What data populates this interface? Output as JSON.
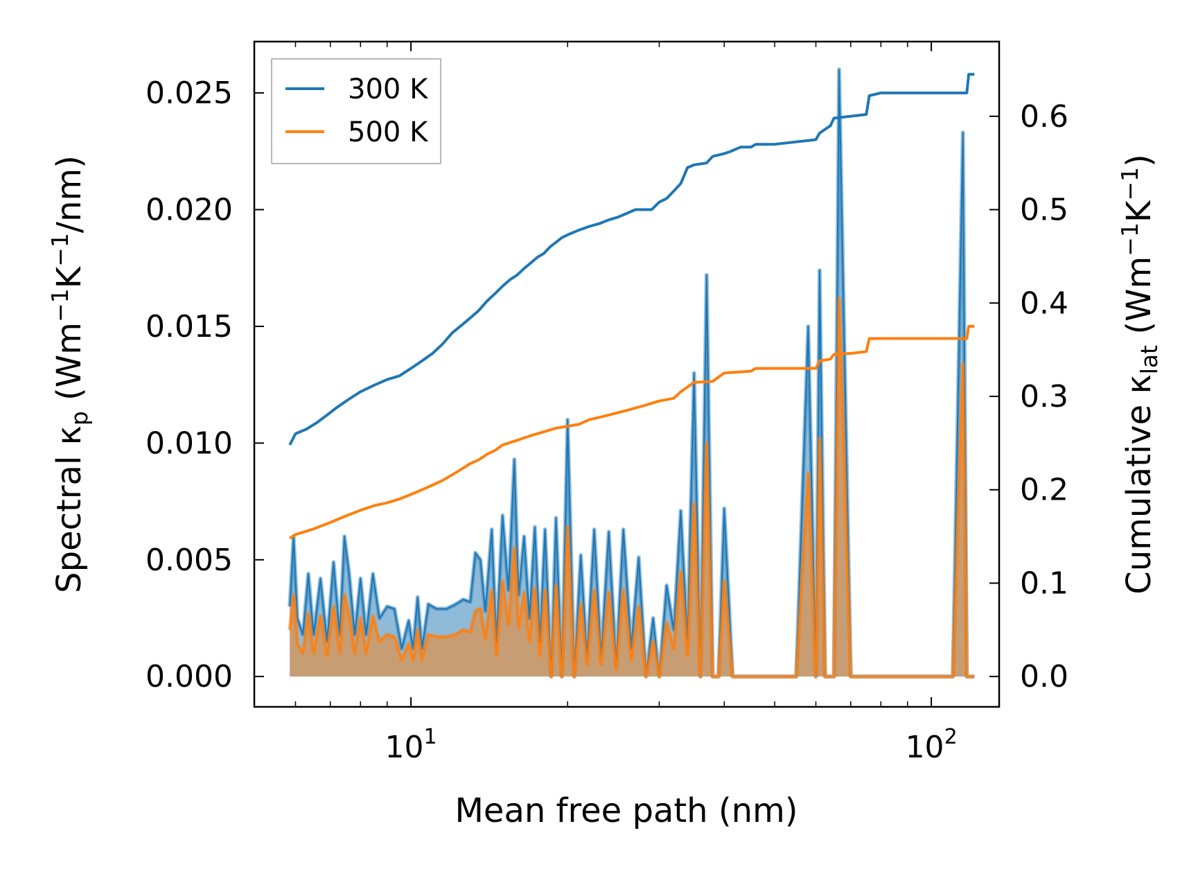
{
  "chart_data": {
    "type": "line",
    "xscale": "log",
    "xlim": [
      5.0,
      135.0
    ],
    "ylim_left": [
      -0.0013,
      0.0272
    ],
    "ylim_right": [
      -0.0325,
      0.68
    ],
    "xlabel": "Mean free path (nm)",
    "ylabel_left": {
      "prefix": "Spectral κ",
      "prefix_sub": "p",
      "units_open": " (Wm",
      "units_sup1": "−1",
      "units_mid": "K",
      "units_sup2": "−1",
      "units_close": "/nm)"
    },
    "ylabel_right": {
      "prefix": "Cumulative κ",
      "prefix_sub": "lat",
      "units_open": " (Wm",
      "units_sup1": "−1",
      "units_mid": "K",
      "units_sup2": "−1",
      "units_close": ")"
    },
    "x_ticks": [
      {
        "value": 10,
        "base": "10",
        "exp": "1"
      },
      {
        "value": 100,
        "base": "10",
        "exp": "2"
      }
    ],
    "x_minor_ticks": [
      6,
      7,
      8,
      9,
      20,
      30,
      40,
      50,
      60,
      70,
      80,
      90
    ],
    "y_ticks_left": [
      "0.000",
      "0.005",
      "0.010",
      "0.015",
      "0.020",
      "0.025"
    ],
    "y_ticks_right": [
      "0.0",
      "0.1",
      "0.2",
      "0.3",
      "0.4",
      "0.5",
      "0.6"
    ],
    "legend": {
      "location": "upper left",
      "entries": [
        "300 K",
        "500 K"
      ]
    },
    "colors": {
      "300 K": "#1f77b4",
      "500 K": "#ff7f0e"
    },
    "series": [
      {
        "name": "300 K",
        "axis": "right",
        "kind": "cumulative",
        "x": [
          5.85,
          6.0,
          6.3,
          6.6,
          6.9,
          7.2,
          7.6,
          8.0,
          8.5,
          9.0,
          9.5,
          10.0,
          10.5,
          11.0,
          11.5,
          12.0,
          12.5,
          13.0,
          13.5,
          14.0,
          14.5,
          15.0,
          15.5,
          16.0,
          16.5,
          17.0,
          17.5,
          18.0,
          18.5,
          19.0,
          19.5,
          20.0,
          21.0,
          22.0,
          23.0,
          24.0,
          25.0,
          26.0,
          27.0,
          28.0,
          29.0,
          30.0,
          31.0,
          32.0,
          33.0,
          34.0,
          35.0,
          37.0,
          38.0,
          40.0,
          41.0,
          43.0,
          45.0,
          46.0,
          50.0,
          60.0,
          61.0,
          64.0,
          65.0,
          70.0,
          75.0,
          76.0,
          80.0,
          100.0,
          117.0,
          118.0,
          121.0
        ],
        "values": [
          0.248,
          0.26,
          0.265,
          0.272,
          0.28,
          0.288,
          0.297,
          0.305,
          0.312,
          0.318,
          0.322,
          0.33,
          0.338,
          0.346,
          0.356,
          0.368,
          0.376,
          0.384,
          0.392,
          0.402,
          0.41,
          0.418,
          0.425,
          0.43,
          0.437,
          0.443,
          0.449,
          0.453,
          0.46,
          0.465,
          0.47,
          0.473,
          0.478,
          0.482,
          0.485,
          0.489,
          0.492,
          0.496,
          0.5,
          0.5,
          0.5,
          0.508,
          0.512,
          0.52,
          0.528,
          0.545,
          0.548,
          0.55,
          0.557,
          0.56,
          0.562,
          0.567,
          0.567,
          0.57,
          0.57,
          0.575,
          0.582,
          0.59,
          0.598,
          0.6,
          0.602,
          0.622,
          0.625,
          0.625,
          0.625,
          0.645,
          0.645
        ]
      },
      {
        "name": "500 K",
        "axis": "right",
        "kind": "cumulative",
        "x": [
          5.85,
          6.0,
          6.5,
          7.0,
          7.5,
          8.0,
          8.5,
          9.0,
          9.5,
          10.0,
          10.5,
          11.0,
          11.5,
          12.0,
          12.5,
          13.0,
          13.5,
          14.0,
          14.5,
          15.0,
          16.0,
          17.0,
          18.0,
          19.0,
          20.0,
          21.0,
          22.0,
          24.0,
          26.0,
          28.0,
          30.0,
          32.0,
          33.0,
          34.0,
          35.0,
          38.0,
          40.0,
          45.0,
          46.0,
          55.0,
          60.0,
          61.0,
          64.0,
          65.0,
          70.0,
          75.0,
          76.0,
          100.0,
          117.0,
          118.0,
          121.0
        ],
        "values": [
          0.148,
          0.152,
          0.158,
          0.165,
          0.172,
          0.178,
          0.183,
          0.186,
          0.19,
          0.195,
          0.2,
          0.205,
          0.21,
          0.216,
          0.222,
          0.228,
          0.232,
          0.238,
          0.242,
          0.248,
          0.253,
          0.258,
          0.262,
          0.266,
          0.268,
          0.27,
          0.275,
          0.28,
          0.285,
          0.29,
          0.295,
          0.298,
          0.305,
          0.31,
          0.315,
          0.316,
          0.325,
          0.327,
          0.33,
          0.33,
          0.33,
          0.338,
          0.34,
          0.345,
          0.346,
          0.348,
          0.362,
          0.362,
          0.362,
          0.375,
          0.375
        ]
      },
      {
        "name": "300 K",
        "axis": "left",
        "kind": "spectral",
        "x": [
          5.85,
          5.95,
          6.05,
          6.2,
          6.35,
          6.5,
          6.7,
          6.9,
          7.1,
          7.3,
          7.45,
          7.6,
          7.8,
          8.0,
          8.2,
          8.45,
          8.7,
          9.0,
          9.3,
          9.6,
          9.9,
          10.1,
          10.3,
          10.5,
          10.8,
          11.2,
          11.7,
          12.2,
          12.6,
          13.0,
          13.3,
          13.6,
          13.9,
          14.3,
          14.6,
          15.0,
          15.4,
          15.8,
          16.1,
          16.5,
          16.9,
          17.3,
          17.7,
          18.1,
          18.6,
          19.0,
          19.5,
          20.0,
          20.6,
          21.2,
          21.8,
          22.5,
          23.2,
          24.0,
          24.8,
          25.6,
          26.5,
          27.4,
          28.3,
          29.2,
          30.0,
          31.0,
          32.0,
          33.0,
          34.0,
          35.0,
          36.0,
          37.0,
          38.0,
          39.0,
          40.0,
          41.5,
          43.0,
          44.5,
          46.0,
          50.0,
          55.0,
          58.0,
          60.0,
          61.0,
          62.5,
          64.0,
          65.0,
          66.5,
          70.0,
          74.0,
          75.5,
          76.5,
          78.0,
          90.0,
          110.0,
          115.0,
          117.0,
          118.5,
          120.0,
          121.0
        ],
        "values": [
          0.003,
          0.006,
          0.0025,
          0.0018,
          0.0044,
          0.0018,
          0.0042,
          0.0015,
          0.0049,
          0.0018,
          0.006,
          0.0045,
          0.0018,
          0.0042,
          0.0018,
          0.0044,
          0.0025,
          0.003,
          0.0029,
          0.0012,
          0.0024,
          0.0012,
          0.0034,
          0.0012,
          0.0031,
          0.0029,
          0.0029,
          0.0031,
          0.0033,
          0.0032,
          0.0053,
          0.005,
          0.0028,
          0.0063,
          0.0015,
          0.0069,
          0.0037,
          0.0093,
          0.0035,
          0.006,
          0.0025,
          0.0064,
          0.0015,
          0.0063,
          0.0,
          0.0068,
          0.0,
          0.011,
          0.0,
          0.0052,
          0.0008,
          0.0063,
          0.0008,
          0.0062,
          0.0005,
          0.0063,
          0.0012,
          0.0051,
          0.0,
          0.0025,
          0.0,
          0.0039,
          0.002,
          0.0071,
          0.0015,
          0.013,
          0.0,
          0.0172,
          0.0,
          0.0,
          0.0072,
          0.0,
          0.0,
          0.0,
          0.0,
          0.0,
          0.0,
          0.015,
          0.0,
          0.0174,
          0.0,
          0.0,
          0.0,
          0.026,
          0.0,
          0.0,
          0.0,
          0.0,
          0.0,
          0.0,
          0.0,
          0.0233,
          0.0,
          0.0,
          0.0,
          0.0
        ]
      },
      {
        "name": "500 K",
        "axis": "left",
        "kind": "spectral",
        "x": [
          5.85,
          5.95,
          6.05,
          6.2,
          6.35,
          6.5,
          6.7,
          6.9,
          7.1,
          7.3,
          7.45,
          7.6,
          7.8,
          8.0,
          8.2,
          8.45,
          8.7,
          9.0,
          9.3,
          9.6,
          9.9,
          10.1,
          10.3,
          10.5,
          10.8,
          11.2,
          11.7,
          12.2,
          12.6,
          13.0,
          13.3,
          13.6,
          13.9,
          14.3,
          14.6,
          15.0,
          15.4,
          15.8,
          16.1,
          16.5,
          16.9,
          17.3,
          17.7,
          18.1,
          18.6,
          19.0,
          19.5,
          20.0,
          20.6,
          21.2,
          21.8,
          22.5,
          23.2,
          24.0,
          24.8,
          25.6,
          26.5,
          27.4,
          28.3,
          29.2,
          30.0,
          31.0,
          32.0,
          33.0,
          34.0,
          35.0,
          36.0,
          37.0,
          38.0,
          39.0,
          40.0,
          41.5,
          43.0,
          44.5,
          46.0,
          50.0,
          55.0,
          58.0,
          60.0,
          61.0,
          62.5,
          64.0,
          65.0,
          66.5,
          70.0,
          74.0,
          75.5,
          76.5,
          78.0,
          90.0,
          110.0,
          115.0,
          117.0,
          118.5,
          120.0,
          121.0
        ],
        "values": [
          0.002,
          0.0035,
          0.0014,
          0.001,
          0.0027,
          0.001,
          0.0026,
          0.0009,
          0.003,
          0.001,
          0.0035,
          0.0027,
          0.001,
          0.0025,
          0.001,
          0.0026,
          0.0015,
          0.0018,
          0.0017,
          0.0007,
          0.0014,
          0.0007,
          0.002,
          0.0007,
          0.0018,
          0.0017,
          0.0017,
          0.0018,
          0.002,
          0.0019,
          0.0028,
          0.0029,
          0.0016,
          0.0037,
          0.0009,
          0.0041,
          0.0022,
          0.0055,
          0.0021,
          0.0036,
          0.0015,
          0.0038,
          0.0009,
          0.0037,
          0.0,
          0.0039,
          0.0,
          0.0064,
          0.0,
          0.0031,
          0.0005,
          0.0037,
          0.0005,
          0.0036,
          0.0003,
          0.0037,
          0.0007,
          0.003,
          0.0,
          0.0015,
          0.0,
          0.0023,
          0.0012,
          0.0045,
          0.0009,
          0.0074,
          0.0,
          0.01,
          0.0,
          0.0,
          0.0041,
          0.0,
          0.0,
          0.0,
          0.0,
          0.0,
          0.0,
          0.0087,
          0.0,
          0.0102,
          0.0,
          0.0,
          0.0,
          0.0162,
          0.0,
          0.0,
          0.0,
          0.0,
          0.0,
          0.0,
          0.0,
          0.0134,
          0.0,
          0.0,
          0.0,
          0.0
        ]
      }
    ]
  }
}
